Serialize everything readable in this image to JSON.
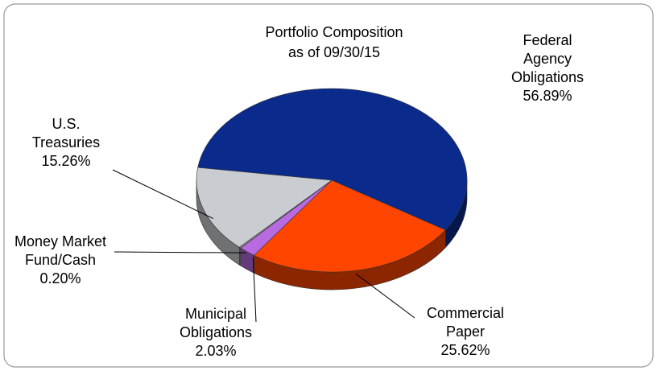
{
  "chart_data": {
    "type": "pie",
    "title": [
      "Portfolio Composition",
      "as of 09/30/15"
    ],
    "categories": [
      "Federal Agency Obligations",
      "Commercial Paper",
      "Municipal Obligations",
      "Money Market Fund/Cash",
      "U.S. Treasuries"
    ],
    "values": [
      56.89,
      25.62,
      2.03,
      0.2,
      15.26
    ],
    "value_labels": [
      "56.89%",
      "25.62%",
      "2.03%",
      "0.20%",
      "15.26%"
    ],
    "colors": [
      "#0a2a8c",
      "#ff4500",
      "#b86ae0",
      "#9a9a9a",
      "#c9cdd1"
    ]
  }
}
